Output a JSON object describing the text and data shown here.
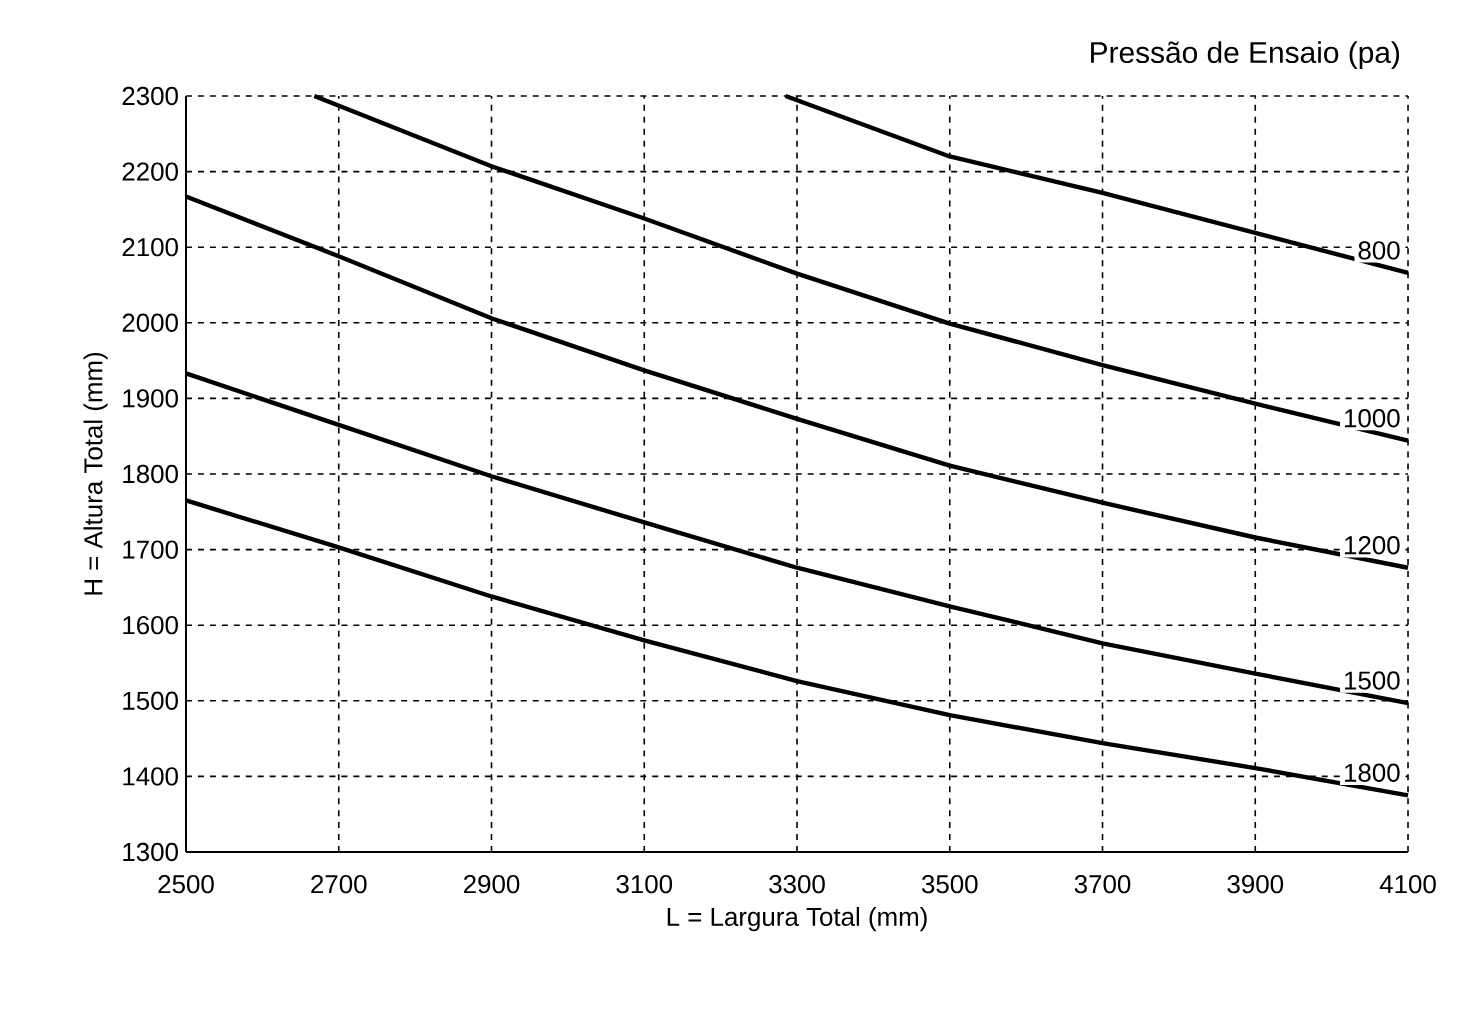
{
  "chart_data": {
    "type": "line",
    "title": "Pressão de Ensaio (pa)",
    "xlabel": "L = Largura Total (mm)",
    "ylabel": "H = Altura Total (mm)",
    "xlim": [
      2500,
      4100
    ],
    "ylim": [
      1300,
      2300
    ],
    "xticks": [
      2500,
      2700,
      2900,
      3100,
      3300,
      3500,
      3700,
      3900,
      4100
    ],
    "yticks": [
      1300,
      1400,
      1500,
      1600,
      1700,
      1800,
      1900,
      2000,
      2100,
      2200,
      2300
    ],
    "grid": true,
    "marker": "none",
    "line_style": "solid",
    "series": [
      {
        "name": "800",
        "color": "#000000",
        "x": [
          3285,
          3500,
          3700,
          3900,
          4100
        ],
        "values": [
          2300,
          2220,
          2172,
          2119,
          2066
        ]
      },
      {
        "name": "1000",
        "color": "#000000",
        "x": [
          2668,
          2900,
          3100,
          3300,
          3500,
          3700,
          3900,
          4100
        ],
        "values": [
          2300,
          2207,
          2138,
          2065,
          1999,
          1944,
          1893,
          1844
        ]
      },
      {
        "name": "1200",
        "color": "#000000",
        "x": [
          2500,
          2700,
          2900,
          3100,
          3300,
          3500,
          3700,
          3900,
          4100
        ],
        "values": [
          2167,
          2088,
          2006,
          1937,
          1873,
          1811,
          1762,
          1716,
          1676
        ]
      },
      {
        "name": "1500",
        "color": "#000000",
        "x": [
          2500,
          2700,
          2900,
          3100,
          3300,
          3500,
          3700,
          3900,
          4100
        ],
        "values": [
          1933,
          1865,
          1797,
          1736,
          1676,
          1625,
          1576,
          1536,
          1497
        ]
      },
      {
        "name": "1800",
        "color": "#000000",
        "x": [
          2500,
          2700,
          2900,
          3100,
          3300,
          3500,
          3700,
          3900,
          4100
        ],
        "values": [
          1765,
          1703,
          1638,
          1580,
          1526,
          1481,
          1444,
          1411,
          1375
        ]
      }
    ]
  }
}
